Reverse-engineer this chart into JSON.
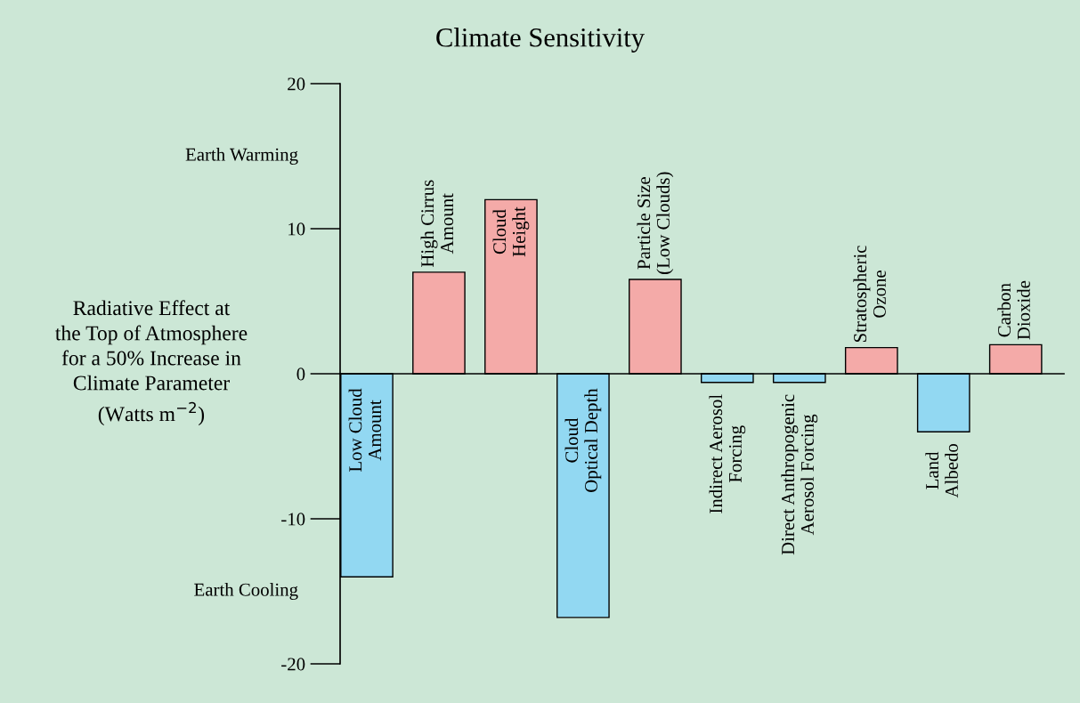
{
  "chart_data": {
    "type": "bar",
    "title": "Climate Sensitivity",
    "ylabel": "Radiative Effect at\nthe Top of Atmosphere\nfor a 50% Increase in\nClimate Parameter\n(Watts m$^{−2}$)",
    "annotations": [
      "Earth Warming",
      "Earth Cooling"
    ],
    "categories": [
      "Low Cloud\nAmount",
      "High Cirrus\nAmount",
      "Cloud\nHeight",
      "Cloud\nOptical Depth",
      "Particle Size\n(Low Clouds)",
      "Indirect Aerosol\nForcing",
      "Direct Anthropogenic\nAerosol Forcing",
      "Stratospheric\nOzone",
      "Land\nAlbedo",
      "Carbon\nDioxide"
    ],
    "values": [
      -14,
      7,
      12,
      -16.8,
      6.5,
      -0.6,
      -0.6,
      1.8,
      -4,
      2
    ],
    "colors": [
      "#92d8f2",
      "#f4aaa8",
      "#f4aaa8",
      "#92d8f2",
      "#f4aaa8",
      "#92d8f2",
      "#92d8f2",
      "#f4aaa8",
      "#92d8f2",
      "#f4aaa8"
    ],
    "ylim": [
      -20,
      20
    ],
    "yticks": [
      -20,
      -10,
      0,
      10,
      20
    ]
  }
}
